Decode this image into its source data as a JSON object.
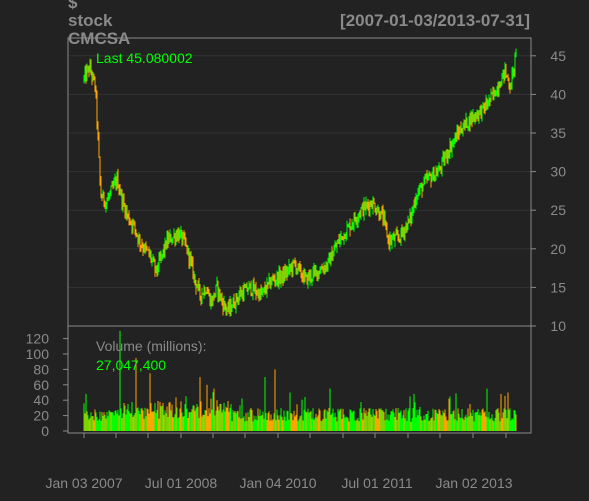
{
  "colors": {
    "background": "#222222",
    "frame": "#8a8a8a",
    "grid": "#333333",
    "text": "#8a8a8a",
    "up": "#00ff00",
    "down": "#ffa500"
  },
  "chart_data": [
    {
      "type": "candlestick",
      "title_lines": [
        "$",
        "stock",
        "CMCSA"
      ],
      "date_range": "[2007-01-03/2013-07-31]",
      "ylim": [
        10,
        46
      ],
      "y_ticks": [
        "10",
        "15",
        "20",
        "25",
        "30",
        "35",
        "40",
        "45"
      ],
      "x_ticks": [
        "Jan 03 2007",
        "Jul 01 2008",
        "Jan 04 2010",
        "Jul 01 2011",
        "Jan 02 2013"
      ],
      "last_label": "Last 45.080002",
      "price_anchors": {
        "x": [
          "2007-01",
          "2007-02",
          "2007-03",
          "2007-03",
          "2007-04",
          "2007-05",
          "2007-06",
          "2007-07",
          "2007-08",
          "2007-09",
          "2007-10",
          "2007-11",
          "2008-01",
          "2008-02",
          "2008-04",
          "2008-06",
          "2008-07",
          "2008-08",
          "2008-09",
          "2008-10",
          "2008-11",
          "2008-12",
          "2009-01",
          "2009-02",
          "2009-03",
          "2009-05",
          "2009-07",
          "2009-09",
          "2009-11",
          "2010-01",
          "2010-03",
          "2010-05",
          "2010-07",
          "2010-09",
          "2010-11",
          "2011-01",
          "2011-03",
          "2011-05",
          "2011-07",
          "2011-08",
          "2011-10",
          "2011-12",
          "2012-01",
          "2012-03",
          "2012-05",
          "2012-07",
          "2012-09",
          "2012-11",
          "2013-01",
          "2013-03",
          "2013-05",
          "2013-06",
          "2013-07"
        ],
        "y": [
          42,
          43.5,
          41,
          40.5,
          27,
          26,
          27.5,
          29,
          26,
          24,
          23,
          21,
          19,
          17,
          21,
          22,
          21,
          19,
          16,
          14,
          15,
          13,
          15,
          13,
          12,
          14,
          15,
          14,
          16,
          16.5,
          18,
          16,
          17,
          18,
          21,
          23,
          25,
          26,
          24,
          21,
          21.5,
          24,
          27,
          29,
          30,
          33,
          35.5,
          37,
          38,
          40,
          43,
          41,
          45
        ]
      }
    },
    {
      "type": "bar",
      "label": "Volume (millions):",
      "last_value": "27,047,400",
      "ylim": [
        0,
        130
      ],
      "y_ticks": [
        "0",
        "20",
        "40",
        "60",
        "80",
        "100",
        "120"
      ]
    }
  ]
}
